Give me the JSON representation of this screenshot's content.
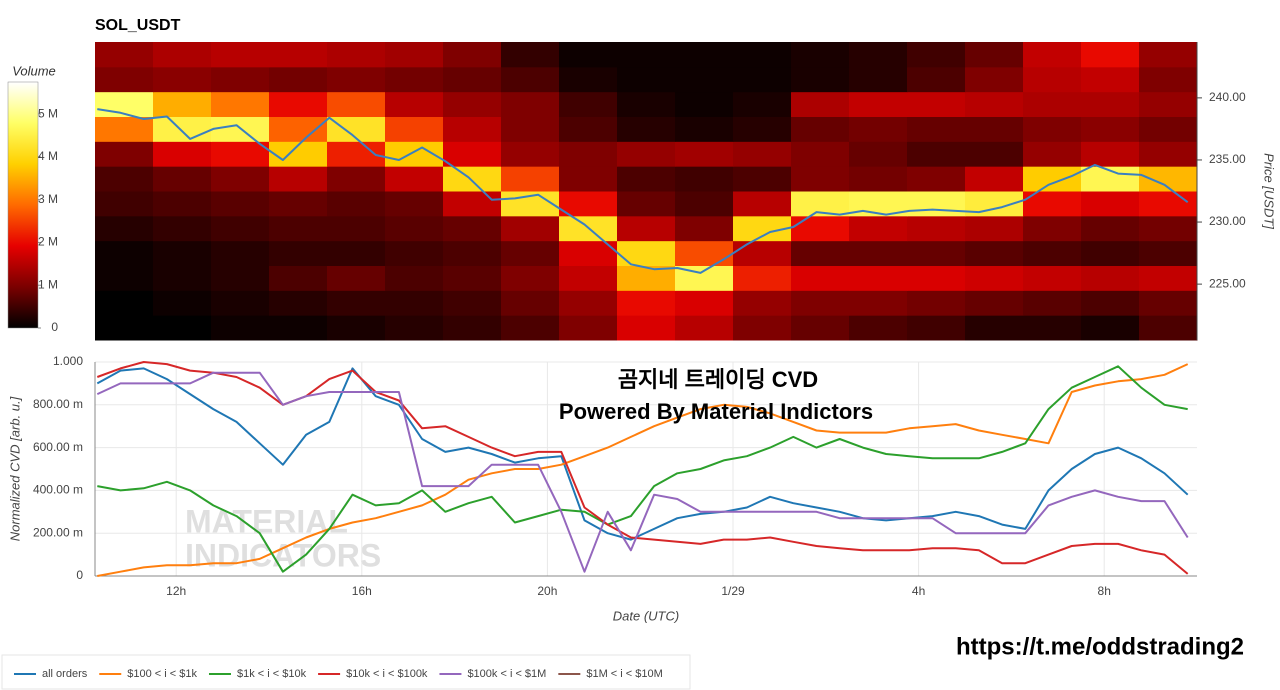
{
  "chart_data": [
    {
      "type": "heatmap",
      "title": "SOL_USDT",
      "ylabel": "Price [USDT]",
      "colorbar_title": "Volume",
      "xlim": [
        10.25,
        34
      ],
      "ylim": [
        220.5,
        244.5
      ],
      "yticks": [
        {
          "value": 225,
          "label": "225.00"
        },
        {
          "value": 230,
          "label": "230.00"
        },
        {
          "value": 235,
          "label": "235.00"
        },
        {
          "value": 240,
          "label": "240.00"
        }
      ],
      "clim": [
        0,
        5.75
      ],
      "cticks": [
        0,
        {
          "value": 1,
          "label": "1 M"
        },
        {
          "value": 2,
          "label": "2 M"
        },
        {
          "value": 3,
          "label": "3 M"
        },
        {
          "value": 4,
          "label": "4 M"
        },
        {
          "value": 5,
          "label": "5 M"
        }
      ],
      "colorscale": [
        "#000000",
        "#7a0000",
        "#e60000",
        "#ff6a00",
        "#ffd000",
        "#ffff66",
        "#ffffff"
      ],
      "heat_xbins": [
        10.25,
        11.5,
        12.75,
        14,
        15.25,
        16.5,
        17.75,
        19,
        20.25,
        21.5,
        22.75,
        24,
        25.25,
        26.5,
        27.75,
        29,
        30.25,
        31.5,
        32.75,
        34
      ],
      "heat_ybins": [
        220.5,
        222.5,
        224.5,
        226.5,
        228.5,
        230.5,
        232.5,
        234.5,
        236.5,
        238.5,
        240.5,
        242.5,
        244.5
      ],
      "z": [
        [
          0.0,
          0.0,
          0.1,
          0.1,
          0.2,
          0.3,
          0.4,
          0.6,
          1.0,
          1.8,
          1.5,
          1.0,
          0.8,
          0.6,
          0.5,
          0.3,
          0.3,
          0.2,
          0.6
        ],
        [
          0.0,
          0.1,
          0.2,
          0.3,
          0.4,
          0.4,
          0.5,
          0.8,
          1.2,
          2.0,
          1.8,
          1.2,
          1.0,
          1.0,
          0.9,
          0.8,
          0.7,
          0.6,
          0.8
        ],
        [
          0.1,
          0.2,
          0.3,
          0.6,
          0.8,
          0.6,
          0.7,
          1.0,
          1.6,
          3.5,
          4.6,
          2.2,
          1.8,
          1.8,
          1.8,
          1.7,
          1.6,
          1.5,
          1.6
        ],
        [
          0.1,
          0.2,
          0.3,
          0.4,
          0.4,
          0.5,
          0.6,
          0.8,
          1.8,
          4.0,
          2.6,
          1.5,
          0.8,
          0.8,
          0.8,
          0.7,
          0.6,
          0.5,
          0.6
        ],
        [
          0.3,
          0.4,
          0.5,
          0.6,
          0.6,
          0.7,
          0.8,
          1.3,
          4.2,
          1.5,
          1.0,
          4.0,
          2.0,
          1.6,
          1.5,
          1.4,
          1.0,
          0.8,
          0.9
        ],
        [
          0.5,
          0.6,
          0.7,
          0.8,
          0.7,
          0.8,
          1.6,
          4.2,
          2.0,
          0.8,
          0.6,
          1.5,
          4.5,
          4.6,
          4.6,
          4.4,
          2.0,
          1.8,
          2.0
        ],
        [
          0.6,
          0.8,
          1.0,
          1.5,
          1.0,
          1.6,
          4.0,
          2.5,
          1.0,
          0.6,
          0.5,
          0.6,
          1.0,
          0.9,
          1.0,
          1.6,
          3.8,
          4.6,
          3.6
        ],
        [
          1.0,
          1.8,
          2.0,
          3.8,
          2.2,
          3.8,
          1.8,
          1.2,
          1.0,
          1.2,
          1.3,
          1.2,
          1.0,
          0.8,
          0.6,
          0.6,
          1.2,
          1.5,
          1.2
        ],
        [
          3.0,
          4.5,
          4.6,
          2.8,
          4.2,
          2.5,
          1.5,
          1.0,
          0.6,
          0.3,
          0.2,
          0.3,
          0.8,
          0.9,
          0.8,
          0.8,
          1.0,
          1.1,
          0.9
        ],
        [
          4.8,
          3.5,
          3.0,
          2.0,
          2.6,
          1.5,
          1.2,
          1.0,
          0.5,
          0.2,
          0.1,
          0.2,
          1.4,
          1.6,
          1.6,
          1.5,
          1.4,
          1.4,
          1.2
        ],
        [
          1.0,
          1.1,
          1.0,
          0.9,
          1.0,
          0.9,
          0.8,
          0.6,
          0.2,
          0.1,
          0.1,
          0.1,
          0.2,
          0.3,
          0.6,
          1.0,
          1.5,
          1.6,
          1.0
        ],
        [
          1.2,
          1.4,
          1.5,
          1.5,
          1.4,
          1.3,
          1.0,
          0.4,
          0.1,
          0.1,
          0.1,
          0.1,
          0.2,
          0.3,
          0.5,
          0.8,
          1.6,
          2.0,
          1.2
        ]
      ],
      "x": [
        10.3,
        10.8,
        11.3,
        11.8,
        12.3,
        12.8,
        13.3,
        13.8,
        14.3,
        14.8,
        15.3,
        15.8,
        16.3,
        16.8,
        17.3,
        17.8,
        18.3,
        18.8,
        19.3,
        19.8,
        20.3,
        20.8,
        21.3,
        21.8,
        22.3,
        22.8,
        23.3,
        23.8,
        24.3,
        24.8,
        25.3,
        25.8,
        26.3,
        26.8,
        27.3,
        27.8,
        28.3,
        28.8,
        29.3,
        29.8,
        30.3,
        30.8,
        31.3,
        31.8,
        32.3,
        32.8,
        33.3,
        33.8
      ],
      "series": [
        {
          "color": "#3a7fc1",
          "values": [
            239.1,
            238.8,
            238.3,
            238.5,
            236.7,
            237.5,
            237.8,
            236.3,
            235.0,
            236.8,
            238.4,
            237.0,
            235.4,
            235.0,
            236.0,
            234.9,
            233.6,
            231.8,
            231.9,
            232.2,
            231.0,
            229.8,
            228.2,
            226.6,
            226.2,
            226.3,
            225.9,
            227.0,
            228.2,
            229.2,
            229.6,
            230.8,
            230.6,
            230.9,
            230.6,
            230.9,
            231.0,
            230.9,
            230.8,
            231.2,
            231.8,
            233.0,
            233.7,
            234.6,
            233.9,
            233.8,
            233.0,
            231.6
          ]
        }
      ]
    },
    {
      "type": "line",
      "xlabel": "Date (UTC)",
      "ylabel": "Normalized CVD [arb. u.]",
      "grid": true,
      "xlim": [
        10.25,
        34
      ],
      "ylim": [
        0,
        1
      ],
      "xticks": [
        {
          "value": 12,
          "label": "12h"
        },
        {
          "value": 16,
          "label": "16h"
        },
        {
          "value": 20,
          "label": "20h"
        },
        {
          "value": 24,
          "label": "1/29"
        },
        {
          "value": 28,
          "label": "4h"
        },
        {
          "value": 32,
          "label": "8h"
        }
      ],
      "yticks": [
        0,
        {
          "value": 0.2,
          "label": "200.00 m"
        },
        {
          "value": 0.4,
          "label": "400.00 m"
        },
        {
          "value": 0.6,
          "label": "600.00 m"
        },
        {
          "value": 0.8,
          "label": "800.00 m"
        },
        {
          "value": 1,
          "label": "1.000"
        }
      ],
      "annotations": [
        "곰지네 트레이딩 CVD",
        "Powered By Material Indictors",
        "https://t.me/oddstrading2"
      ],
      "watermark": [
        "MATERIAL",
        "INDICATORS"
      ],
      "x": [
        10.3,
        10.8,
        11.3,
        11.8,
        12.3,
        12.8,
        13.3,
        13.8,
        14.3,
        14.8,
        15.3,
        15.8,
        16.3,
        16.8,
        17.3,
        17.8,
        18.3,
        18.8,
        19.3,
        19.8,
        20.3,
        20.8,
        21.3,
        21.8,
        22.3,
        22.8,
        23.3,
        23.8,
        24.3,
        24.8,
        25.3,
        25.8,
        26.3,
        26.8,
        27.3,
        27.8,
        28.3,
        28.8,
        29.3,
        29.8,
        30.3,
        30.8,
        31.3,
        31.8,
        32.3,
        32.8,
        33.3,
        33.8
      ],
      "series": [
        {
          "name": "all orders",
          "color": "#1f77b4",
          "values": [
            0.9,
            0.96,
            0.97,
            0.92,
            0.85,
            0.78,
            0.72,
            0.62,
            0.52,
            0.66,
            0.72,
            0.97,
            0.84,
            0.8,
            0.64,
            0.58,
            0.6,
            0.57,
            0.53,
            0.55,
            0.56,
            0.26,
            0.2,
            0.17,
            0.22,
            0.27,
            0.29,
            0.3,
            0.32,
            0.37,
            0.34,
            0.32,
            0.3,
            0.27,
            0.26,
            0.27,
            0.28,
            0.3,
            0.28,
            0.24,
            0.22,
            0.4,
            0.5,
            0.57,
            0.6,
            0.55,
            0.48,
            0.38
          ]
        },
        {
          "name": "$100 < i < $1k",
          "color": "#ff7f0e",
          "values": [
            0.0,
            0.02,
            0.04,
            0.05,
            0.05,
            0.06,
            0.06,
            0.08,
            0.13,
            0.18,
            0.22,
            0.25,
            0.27,
            0.3,
            0.33,
            0.38,
            0.45,
            0.48,
            0.5,
            0.5,
            0.52,
            0.56,
            0.6,
            0.65,
            0.7,
            0.74,
            0.78,
            0.8,
            0.79,
            0.76,
            0.72,
            0.68,
            0.67,
            0.67,
            0.67,
            0.69,
            0.7,
            0.71,
            0.68,
            0.66,
            0.64,
            0.62,
            0.86,
            0.89,
            0.91,
            0.92,
            0.94,
            0.99
          ]
        },
        {
          "name": "$1k < i < $10k",
          "color": "#2ca02c",
          "values": [
            0.42,
            0.4,
            0.41,
            0.44,
            0.4,
            0.33,
            0.28,
            0.2,
            0.02,
            0.1,
            0.22,
            0.38,
            0.33,
            0.34,
            0.4,
            0.3,
            0.34,
            0.37,
            0.25,
            0.28,
            0.31,
            0.3,
            0.24,
            0.28,
            0.42,
            0.48,
            0.5,
            0.54,
            0.56,
            0.6,
            0.65,
            0.6,
            0.64,
            0.6,
            0.57,
            0.56,
            0.55,
            0.55,
            0.55,
            0.58,
            0.62,
            0.78,
            0.88,
            0.93,
            0.98,
            0.88,
            0.8,
            0.78
          ]
        },
        {
          "name": "$10k < i < $100k",
          "color": "#d62728",
          "values": [
            0.93,
            0.97,
            1.0,
            0.99,
            0.96,
            0.95,
            0.93,
            0.88,
            0.8,
            0.84,
            0.92,
            0.96,
            0.86,
            0.82,
            0.69,
            0.7,
            0.65,
            0.6,
            0.56,
            0.58,
            0.58,
            0.32,
            0.24,
            0.18,
            0.17,
            0.16,
            0.15,
            0.17,
            0.17,
            0.18,
            0.16,
            0.14,
            0.13,
            0.12,
            0.12,
            0.12,
            0.13,
            0.13,
            0.12,
            0.06,
            0.06,
            0.1,
            0.14,
            0.15,
            0.15,
            0.12,
            0.1,
            0.01
          ]
        },
        {
          "name": "$100k < i < $1M",
          "color": "#9467bd",
          "values": [
            0.85,
            0.9,
            0.9,
            0.9,
            0.9,
            0.95,
            0.95,
            0.95,
            0.8,
            0.84,
            0.86,
            0.86,
            0.86,
            0.86,
            0.42,
            0.42,
            0.42,
            0.52,
            0.52,
            0.52,
            0.3,
            0.02,
            0.3,
            0.12,
            0.38,
            0.36,
            0.3,
            0.3,
            0.3,
            0.3,
            0.3,
            0.3,
            0.27,
            0.27,
            0.27,
            0.27,
            0.27,
            0.2,
            0.2,
            0.2,
            0.2,
            0.33,
            0.37,
            0.4,
            0.37,
            0.35,
            0.35,
            0.18
          ]
        },
        {
          "name": "$1M < i < $10M",
          "color": "#8c564b",
          "values": [
            null,
            null,
            null,
            null,
            null,
            null,
            null,
            null,
            null,
            null,
            null,
            null,
            null,
            null,
            null,
            null,
            null,
            null,
            null,
            null,
            null,
            null,
            null,
            null,
            null,
            null,
            null,
            null,
            null,
            null,
            null,
            null,
            null,
            null,
            null,
            null,
            null,
            null,
            null,
            null,
            null,
            null,
            null,
            null,
            null,
            null,
            null,
            null
          ]
        }
      ]
    }
  ]
}
